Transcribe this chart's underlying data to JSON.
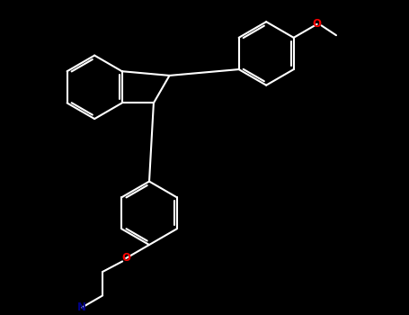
{
  "bg_color": "#000000",
  "bond_color": "#ffffff",
  "oxygen_color": "#ff0000",
  "nitrogen_color": "#00008b",
  "line_width": 1.5,
  "figsize": [
    4.55,
    3.5
  ],
  "dpi": 100,
  "xlim": [
    0,
    9.1
  ],
  "ylim": [
    0,
    7.0
  ]
}
